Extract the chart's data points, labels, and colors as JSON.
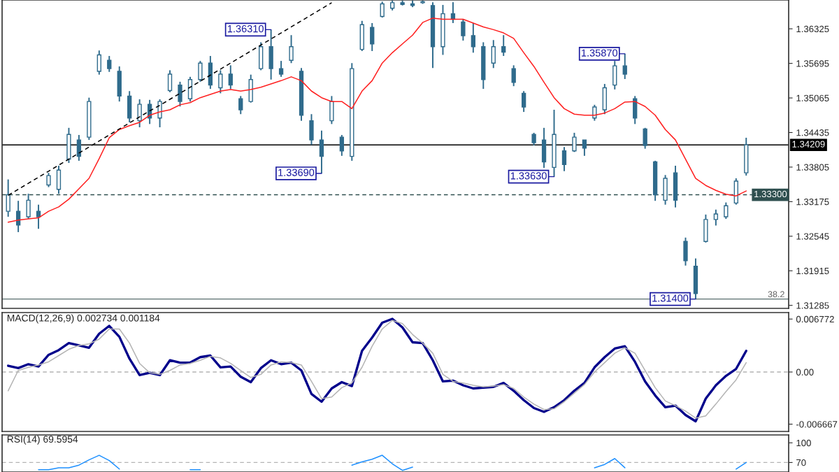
{
  "chart_data": [
    {
      "type": "candlestick",
      "color": "#2f6b8c",
      "tick_labels": "y",
      "categories": [
        null,
        null,
        null,
        null,
        null,
        null,
        null,
        null,
        null,
        null,
        null,
        null,
        null,
        null,
        null,
        null,
        null,
        null,
        null,
        null,
        null,
        null,
        null,
        null,
        null,
        null,
        null,
        null,
        null,
        null,
        null,
        null,
        null,
        null,
        null,
        null,
        null,
        null,
        null,
        null,
        null,
        null,
        null,
        null,
        null,
        null,
        null,
        null,
        null,
        null,
        null,
        null,
        null,
        null,
        null,
        null,
        null,
        null,
        null,
        null,
        null,
        null,
        null,
        null,
        null,
        null,
        null,
        null,
        null,
        null,
        null,
        null,
        null,
        null
      ],
      "ohlc": [
        [
          1.33,
          1.3358,
          1.329,
          1.333
        ],
        [
          1.33,
          1.3319,
          1.3262,
          1.3275
        ],
        [
          1.329,
          1.3332,
          1.3286,
          1.332
        ],
        [
          1.33,
          1.3312,
          1.3268,
          1.329
        ],
        [
          1.3348,
          1.337,
          1.3344,
          1.3365
        ],
        [
          1.334,
          1.3383,
          1.3332,
          1.3375
        ],
        [
          1.3395,
          1.3452,
          1.3388,
          1.344
        ],
        [
          1.343,
          1.3439,
          1.3392,
          1.34
        ],
        [
          1.3435,
          1.3507,
          1.343,
          1.35
        ],
        [
          1.3555,
          1.3593,
          1.3549,
          1.3585
        ],
        [
          1.3575,
          1.3583,
          1.3554,
          1.356
        ],
        [
          1.3555,
          1.3564,
          1.35,
          1.351
        ],
        [
          1.351,
          1.3519,
          1.3462,
          1.347
        ],
        [
          1.3465,
          1.3504,
          1.3453,
          1.3495
        ],
        [
          1.3495,
          1.3503,
          1.3459,
          1.347
        ],
        [
          1.347,
          1.3504,
          1.3453,
          1.35
        ],
        [
          1.352,
          1.3557,
          1.3517,
          1.355
        ],
        [
          1.353,
          1.3536,
          1.3491,
          1.35
        ],
        [
          1.3505,
          1.3545,
          1.35,
          1.354
        ],
        [
          1.354,
          1.3574,
          1.3536,
          1.357
        ],
        [
          1.357,
          1.3583,
          1.3523,
          1.353
        ],
        [
          1.3525,
          1.3557,
          1.3515,
          1.355
        ],
        [
          1.355,
          1.3566,
          1.3523,
          1.353
        ],
        [
          1.3505,
          1.351,
          1.3477,
          1.3485
        ],
        [
          1.35,
          1.3549,
          1.3498,
          1.354
        ],
        [
          1.356,
          1.3608,
          1.3557,
          1.36
        ],
        [
          1.36,
          1.3631,
          1.354,
          1.356
        ],
        [
          1.356,
          1.3574,
          1.3545,
          1.355
        ],
        [
          1.3575,
          1.3621,
          1.357,
          1.36
        ],
        [
          1.3555,
          1.3561,
          1.3465,
          1.3475
        ],
        [
          1.3465,
          1.3477,
          1.3421,
          1.343
        ],
        [
          1.343,
          1.3447,
          1.3369,
          1.34
        ],
        [
          1.3465,
          1.351,
          1.3459,
          1.35
        ],
        [
          1.3435,
          1.3439,
          1.3401,
          1.341
        ],
        [
          1.34,
          1.357,
          1.3392,
          1.356
        ],
        [
          1.3595,
          1.3647,
          1.3592,
          1.364
        ],
        [
          1.3635,
          1.3643,
          1.3592,
          1.3605
        ],
        [
          1.3655,
          1.3682,
          1.3653,
          1.3678
        ],
        [
          1.367,
          1.3684,
          1.3666,
          1.368
        ],
        [
          1.368,
          1.3684,
          1.3675,
          1.3677
        ],
        [
          1.3678,
          1.3684,
          1.3672,
          1.3675
        ],
        [
          1.368,
          1.3684,
          1.3678,
          1.3682
        ],
        [
          1.3675,
          1.3681,
          1.3561,
          1.36
        ],
        [
          1.36,
          1.3676,
          1.3585,
          1.366
        ],
        [
          1.366,
          1.3681,
          1.3643,
          1.365
        ],
        [
          1.3645,
          1.365,
          1.3611,
          1.362
        ],
        [
          1.362,
          1.3643,
          1.3589,
          1.36
        ],
        [
          1.36,
          1.3608,
          1.3523,
          1.354
        ],
        [
          1.357,
          1.3612,
          1.3561,
          1.36
        ],
        [
          1.36,
          1.3621,
          1.3583,
          1.359
        ],
        [
          1.356,
          1.3566,
          1.3528,
          1.3535
        ],
        [
          1.3515,
          1.3519,
          1.3481,
          1.349
        ],
        [
          1.344,
          1.3443,
          1.342,
          1.3425
        ],
        [
          1.343,
          1.3452,
          1.3379,
          1.339
        ],
        [
          1.338,
          1.3485,
          1.3363,
          1.344
        ],
        [
          1.341,
          1.3417,
          1.3373,
          1.3385
        ],
        [
          1.341,
          1.3443,
          1.3408,
          1.3435
        ],
        [
          1.343,
          1.343,
          1.3401,
          1.3415
        ],
        [
          1.347,
          1.3494,
          1.3465,
          1.349
        ],
        [
          1.3485,
          1.3532,
          1.3477,
          1.3525
        ],
        [
          1.353,
          1.3574,
          1.3522,
          1.3565
        ],
        [
          1.3565,
          1.3587,
          1.3541,
          1.355
        ],
        [
          1.3505,
          1.351,
          1.3459,
          1.347
        ],
        [
          1.345,
          1.3452,
          1.3414,
          1.342
        ],
        [
          1.339,
          1.3392,
          1.3319,
          1.333
        ],
        [
          1.332,
          1.3366,
          1.3312,
          1.336
        ],
        [
          1.337,
          1.3383,
          1.3307,
          1.332
        ],
        [
          1.3245,
          1.3252,
          1.3201,
          1.321
        ],
        [
          1.32,
          1.3214,
          1.314,
          1.315
        ],
        [
          1.3245,
          1.3294,
          1.3243,
          1.3285
        ],
        [
          1.3285,
          1.3303,
          1.3274,
          1.3295
        ],
        [
          1.329,
          1.3316,
          1.3286,
          1.331
        ],
        [
          1.3315,
          1.336,
          1.3312,
          1.3355
        ],
        [
          1.337,
          1.3434,
          1.3365,
          1.3421
        ]
      ],
      "series": [
        {
          "type": "line",
          "color": "#ff2020",
          "values": [
            1.328,
            1.3284,
            1.3286,
            1.3288,
            1.33,
            1.3308,
            1.3322,
            1.3341,
            1.336,
            1.3396,
            1.3434,
            1.3449,
            1.3456,
            1.3462,
            1.3475,
            1.3481,
            1.3485,
            1.3494,
            1.3498,
            1.3507,
            1.3513,
            1.3519,
            1.3522,
            1.3519,
            1.3522,
            1.3526,
            1.3532,
            1.3538,
            1.3545,
            1.3538,
            1.3519,
            1.3507,
            1.35,
            1.35,
            1.3487,
            1.3519,
            1.3538,
            1.357,
            1.3589,
            1.3605,
            1.3621,
            1.3644,
            1.3652,
            1.365,
            1.365,
            1.365,
            1.3643,
            1.3636,
            1.3631,
            1.3625,
            1.3615,
            1.3589,
            1.3564,
            1.3535,
            1.3507,
            1.3487,
            1.3477,
            1.3475,
            1.3475,
            1.3479,
            1.3487,
            1.3499,
            1.35,
            1.3491,
            1.3475,
            1.3449,
            1.343,
            1.3395,
            1.336,
            1.3347,
            1.3338,
            1.3331,
            1.3328,
            1.3337
          ]
        },
        {
          "type": "line",
          "color": "#000000",
          "line_style": "dashed",
          "values": [
            1.3329,
            1.334,
            1.3351,
            1.3362,
            1.3373,
            1.3384,
            1.3395,
            1.3406,
            1.3417,
            1.3428,
            1.3439,
            1.345,
            1.3461,
            1.3472,
            1.3483,
            1.3493,
            1.3504,
            1.3515,
            1.3526,
            1.3537,
            1.3548,
            1.3559,
            1.357,
            1.3581,
            1.3592,
            1.3603,
            1.3614,
            1.3625,
            1.3636,
            1.3647,
            1.3658,
            1.3669,
            1.368,
            null,
            null,
            null,
            null,
            null,
            null,
            null,
            null,
            null,
            null,
            null,
            null,
            null,
            null,
            null,
            null,
            null,
            null,
            null,
            null,
            null,
            null,
            null,
            null,
            null,
            null,
            null,
            null,
            null,
            null,
            null,
            null,
            null,
            null,
            null,
            null,
            null,
            null,
            null,
            null,
            null
          ]
        }
      ],
      "ylim": [
        1.3123,
        1.3685
      ],
      "yticks": [
        1.36325,
        1.35695,
        1.35065,
        1.34435,
        1.33805,
        1.33175,
        1.32545,
        1.31915,
        1.31285
      ],
      "ref_lines": [
        {
          "axis": "y",
          "value": 1.34209,
          "label": "1.34209",
          "color": "#000000",
          "line_style": "solid"
        },
        {
          "axis": "y",
          "value": 1.333,
          "label": "1.33300",
          "color": "#2f4f4f",
          "line_style": "dashed"
        },
        {
          "axis": "y",
          "value": 1.314,
          "color": "#5a6e6e",
          "line_style": "solid"
        }
      ],
      "annotations": [
        "1.36310",
        "1.33690",
        "1.33630",
        "1.35870",
        "1.31400",
        "38.2"
      ]
    },
    {
      "type": "line",
      "title": "MACD(12,26,9) 0.002734 0.001184",
      "tick_labels": "y",
      "categories": [
        null,
        null,
        null,
        null,
        null,
        null,
        null,
        null,
        null,
        null,
        null,
        null,
        null,
        null,
        null,
        null,
        null,
        null,
        null,
        null,
        null,
        null,
        null,
        null,
        null,
        null,
        null,
        null,
        null,
        null,
        null,
        null,
        null,
        null,
        null,
        null,
        null,
        null,
        null,
        null,
        null,
        null,
        null,
        null,
        null,
        null,
        null,
        null,
        null,
        null,
        null,
        null,
        null,
        null,
        null,
        null,
        null,
        null,
        null,
        null,
        null,
        null,
        null,
        null,
        null,
        null,
        null,
        null,
        null,
        null,
        null,
        null,
        null,
        null
      ],
      "series": [
        {
          "color": "#00008b",
          "values": [
            0.0008,
            0.0005,
            0.001,
            0.0007,
            0.0022,
            0.0028,
            0.0037,
            0.0034,
            0.0031,
            0.0049,
            0.0059,
            0.0045,
            0.0017,
            -0.0004,
            -0.0001,
            -0.0004,
            0.0015,
            0.0012,
            0.0012,
            0.0019,
            0.0021,
            0.0006,
            0.0007,
            -0.0006,
            -0.0013,
            0.0005,
            0.0015,
            0.001,
            0.0012,
            0.0002,
            -0.0028,
            -0.0038,
            -0.0021,
            -0.0013,
            -0.0018,
            0.0027,
            0.0044,
            0.0063,
            0.0068,
            0.0057,
            0.0038,
            0.0037,
            0.0015,
            -0.0012,
            -0.0011,
            -0.0017,
            -0.0021,
            -0.002,
            -0.0019,
            -0.0014,
            -0.0024,
            -0.0036,
            -0.0046,
            -0.0051,
            -0.0045,
            -0.0036,
            -0.0024,
            -0.0014,
            0.0006,
            0.0019,
            0.003,
            0.0033,
            0.0013,
            -0.0012,
            -0.003,
            -0.0045,
            -0.0043,
            -0.0055,
            -0.0063,
            -0.0034,
            -0.0017,
            -0.0005,
            0.0004,
            0.0027
          ]
        },
        {
          "color": "#b4b4b4",
          "values": [
            -0.0024,
            0.0002,
            0.0006,
            0.0009,
            0.0013,
            0.0021,
            0.0029,
            0.0034,
            0.0036,
            0.0042,
            0.0055,
            0.0055,
            0.0037,
            0.0011,
            -0.0001,
            -0.0003,
            0.0002,
            0.0009,
            0.0011,
            0.0015,
            0.002,
            0.0018,
            0.0011,
            0.0002,
            -0.0007,
            -0.0003,
            0.0009,
            0.0013,
            0.0012,
            0.0009,
            -0.0012,
            -0.0034,
            -0.0032,
            -0.002,
            -0.0014,
            0.0006,
            0.0033,
            0.0055,
            0.0066,
            0.0062,
            0.0048,
            0.0037,
            0.0024,
            -0.0003,
            -0.0012,
            -0.0014,
            -0.0017,
            -0.0019,
            -0.0018,
            -0.0016,
            -0.0021,
            -0.0032,
            -0.0041,
            -0.0048,
            -0.0047,
            -0.0038,
            -0.0027,
            -0.0016,
            0.0,
            0.0012,
            0.0024,
            0.0031,
            0.0024,
            0.0002,
            -0.002,
            -0.0037,
            -0.0043,
            -0.005,
            -0.0059,
            -0.0056,
            -0.0041,
            -0.0025,
            -0.001,
            0.0012
          ]
        }
      ],
      "ylim": [
        -0.0076,
        0.0076
      ],
      "yticks": [
        0.006772,
        {
          "value": 0,
          "label": "0.00"
        },
        -0.006667
      ],
      "ref_lines": [
        {
          "axis": "y",
          "value": 0,
          "color": "#b4b4b4",
          "line_style": "dashed"
        }
      ]
    },
    {
      "type": "line",
      "title": "RSI(14) 69.5954",
      "tick_labels": "y",
      "categories": [
        null,
        null,
        null,
        null,
        null,
        null,
        null,
        null,
        null,
        null,
        null,
        null,
        null,
        null,
        null,
        null,
        null,
        null,
        null,
        null,
        null,
        null,
        null,
        null,
        null,
        null,
        null,
        null,
        null,
        null,
        null,
        null,
        null,
        null,
        null,
        null,
        null,
        null,
        null,
        null,
        null,
        null,
        null,
        null,
        null,
        null,
        null,
        null,
        null,
        null,
        null,
        null,
        null,
        null,
        null,
        null,
        null,
        null,
        null,
        null,
        null,
        null,
        null,
        null,
        null,
        null,
        null,
        null,
        null,
        null,
        null,
        null,
        null,
        null
      ],
      "series": [
        {
          "color": "#1e90ff",
          "values": [
            null,
            null,
            null,
            59,
            59,
            62,
            62,
            66,
            74,
            81,
            73,
            60,
            null,
            null,
            null,
            null,
            null,
            null,
            59,
            59,
            null,
            null,
            null,
            null,
            null,
            null,
            null,
            null,
            null,
            null,
            null,
            null,
            null,
            null,
            66,
            71,
            75,
            81,
            68,
            58,
            63,
            null,
            null,
            null,
            null,
            null,
            null,
            null,
            null,
            null,
            null,
            null,
            null,
            null,
            null,
            null,
            null,
            null,
            62,
            67,
            76,
            62,
            null,
            null,
            null,
            null,
            null,
            null,
            null,
            null,
            null,
            null,
            60,
            70
          ]
        }
      ],
      "ylim": [
        55.5,
        112
      ],
      "yticks": [
        100,
        70
      ],
      "ref_lines": [
        {
          "axis": "y",
          "value": 70,
          "color": "#b4b4b4",
          "line_style": "dashed"
        }
      ]
    }
  ]
}
